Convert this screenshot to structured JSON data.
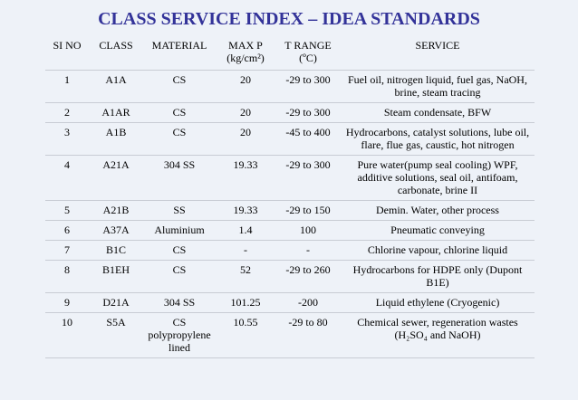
{
  "title": "CLASS SERVICE INDEX – IDEA STANDARDS",
  "table": {
    "headers": [
      "SI NO",
      "CLASS",
      "MATERIAL",
      "MAX P (kg/cm²)",
      "T RANGE (ºC)",
      "SERVICE"
    ],
    "rows": [
      [
        "1",
        "A1A",
        "CS",
        "20",
        "-29 to 300",
        "Fuel oil, nitrogen liquid, fuel gas, NaOH, brine, steam tracing"
      ],
      [
        "2",
        "A1AR",
        "CS",
        "20",
        "-29 to 300",
        "Steam condensate, BFW"
      ],
      [
        "3",
        "A1B",
        "CS",
        "20",
        "-45 to 400",
        "Hydrocarbons, catalyst solutions, lube oil, flare, flue gas, caustic, hot nitrogen"
      ],
      [
        "4",
        "A21A",
        "304 SS",
        "19.33",
        "-29 to 300",
        "Pure water(pump seal cooling) WPF, additive solutions, seal oil, antifoam, carbonate, brine II"
      ],
      [
        "5",
        "A21B",
        "SS",
        "19.33",
        "-29 to 150",
        "Demin. Water, other process"
      ],
      [
        "6",
        "A37A",
        "Aluminium",
        "1.4",
        "100",
        "Pneumatic conveying"
      ],
      [
        "7",
        "B1C",
        "CS",
        "-",
        "-",
        "Chlorine vapour, chlorine liquid"
      ],
      [
        "8",
        "B1EH",
        "CS",
        "52",
        "-29 to 260",
        "Hydrocarbons for HDPE only (Dupont B1E)"
      ],
      [
        "9",
        "D21A",
        "304 SS",
        "101.25",
        "-200",
        "Liquid ethylene (Cryogenic)"
      ],
      [
        "10",
        "S5A",
        "CS polypropylene lined",
        "10.55",
        "-29 to 80",
        "Chemical sewer, regeneration wastes (H₂SO₄ and NaOH)"
      ]
    ]
  }
}
